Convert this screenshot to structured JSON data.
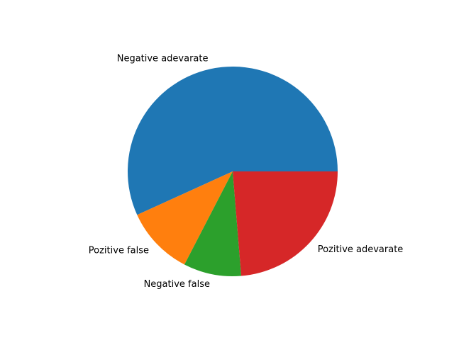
{
  "chart_data": {
    "type": "pie",
    "title": "",
    "categories": [
      "Negative adevarate",
      "Pozitive false",
      "Negative false",
      "Pozitive adevarate"
    ],
    "values": [
      56.8,
      10.6,
      8.9,
      23.7
    ],
    "colors": [
      "#1f77b4",
      "#ff7f0e",
      "#2ca02c",
      "#d62728"
    ],
    "start_angle_deg": 0,
    "direction": "counterclockwise",
    "legend": "none"
  }
}
